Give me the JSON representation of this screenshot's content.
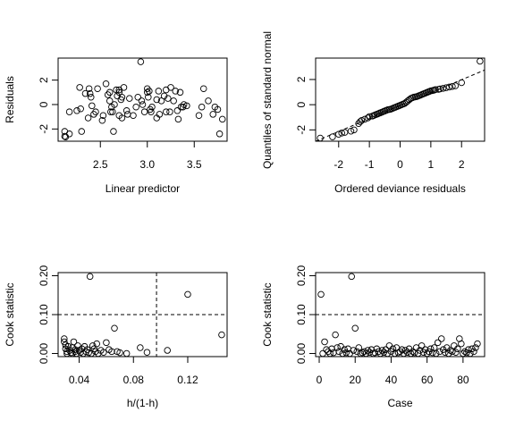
{
  "chart_data": [
    {
      "type": "scatter",
      "xlabel": "Linear predictor",
      "ylabel": "Residuals",
      "xlim": [
        2.05,
        3.85
      ],
      "ylim": [
        -3.0,
        3.8
      ],
      "xticks": [
        2.5,
        3.0,
        3.5
      ],
      "xtick_labels": [
        "2.5",
        "3.0",
        "3.5"
      ],
      "yticks": [
        -2,
        0,
        2
      ],
      "ytick_labels": [
        "-2",
        "0",
        "2"
      ],
      "points": [
        [
          2.12,
          -2.2
        ],
        [
          2.12,
          -2.6
        ],
        [
          2.13,
          -2.65
        ],
        [
          2.17,
          -2.4
        ],
        [
          2.17,
          -0.6
        ],
        [
          2.25,
          -0.5
        ],
        [
          2.28,
          1.4
        ],
        [
          2.29,
          -0.35
        ],
        [
          2.3,
          -2.2
        ],
        [
          2.34,
          0.9
        ],
        [
          2.37,
          -1.1
        ],
        [
          2.38,
          1.3
        ],
        [
          2.39,
          0.9
        ],
        [
          2.4,
          0.6
        ],
        [
          2.41,
          -0.1
        ],
        [
          2.43,
          -0.8
        ],
        [
          2.47,
          1.3
        ],
        [
          2.52,
          -1.3
        ],
        [
          2.53,
          -0.9
        ],
        [
          2.56,
          1.7
        ],
        [
          2.58,
          0.8
        ],
        [
          2.6,
          1.0
        ],
        [
          2.6,
          0.3
        ],
        [
          2.61,
          -0.6
        ],
        [
          2.62,
          -0.2
        ],
        [
          2.63,
          -0.6
        ],
        [
          2.64,
          -2.2
        ],
        [
          2.65,
          0.0
        ],
        [
          2.67,
          1.2
        ],
        [
          2.68,
          0.7
        ],
        [
          2.7,
          -0.9
        ],
        [
          2.7,
          1.2
        ],
        [
          2.7,
          1.0
        ],
        [
          2.72,
          0.4
        ],
        [
          2.73,
          0.6
        ],
        [
          2.73,
          -1.1
        ],
        [
          2.75,
          1.4
        ],
        [
          2.78,
          -0.5
        ],
        [
          2.79,
          -0.8
        ],
        [
          2.81,
          0.5
        ],
        [
          2.85,
          -0.9
        ],
        [
          2.88,
          -0.2
        ],
        [
          2.9,
          0.6
        ],
        [
          2.93,
          3.5
        ],
        [
          2.94,
          0.3
        ],
        [
          2.95,
          0.0
        ],
        [
          2.97,
          -0.6
        ],
        [
          3.0,
          1.0
        ],
        [
          3.0,
          1.3
        ],
        [
          3.01,
          0.6
        ],
        [
          3.02,
          1.1
        ],
        [
          3.03,
          -0.4
        ],
        [
          3.04,
          -0.6
        ],
        [
          3.05,
          -0.2
        ],
        [
          3.1,
          -1.1
        ],
        [
          3.12,
          1.1
        ],
        [
          3.13,
          -0.8
        ],
        [
          3.15,
          0.3
        ],
        [
          3.18,
          0.7
        ],
        [
          3.2,
          -0.6
        ],
        [
          3.2,
          1.2
        ],
        [
          3.22,
          0.5
        ],
        [
          3.24,
          -0.6
        ],
        [
          3.25,
          1.4
        ],
        [
          3.28,
          0.3
        ],
        [
          3.3,
          1.1
        ],
        [
          3.32,
          -0.5
        ],
        [
          3.33,
          -1.2
        ],
        [
          3.35,
          1.0
        ],
        [
          3.36,
          -0.2
        ],
        [
          3.38,
          -0.2
        ],
        [
          3.39,
          0.0
        ],
        [
          3.42,
          -0.1
        ],
        [
          3.55,
          -0.9
        ],
        [
          3.58,
          -0.2
        ],
        [
          3.6,
          1.3
        ],
        [
          3.65,
          0.3
        ],
        [
          3.7,
          -0.8
        ],
        [
          3.72,
          -0.2
        ],
        [
          3.77,
          -2.4
        ],
        [
          3.8,
          -1.2
        ],
        [
          3.75,
          -0.4
        ],
        [
          3.1,
          0.4
        ],
        [
          2.45,
          -0.6
        ]
      ]
    },
    {
      "type": "scatter",
      "xlabel": "Ordered deviance residuals",
      "ylabel": "Quantiles of standard normal",
      "xlim": [
        -2.75,
        2.75
      ],
      "ylim": [
        -2.9,
        3.7
      ],
      "xticks": [
        -2,
        -1,
        0,
        1,
        2
      ],
      "xtick_labels": [
        "-2",
        "-1",
        "0",
        "1",
        "2"
      ],
      "yticks": [
        -2,
        0,
        2
      ],
      "ytick_labels": [
        "-2",
        "0",
        "2"
      ],
      "reference_line": [
        [
          -2.75,
          -2.9
        ],
        [
          2.75,
          2.75
        ]
      ],
      "points": [
        [
          -2.6,
          -2.65
        ],
        [
          -2.2,
          -2.55
        ],
        [
          -2.0,
          -2.35
        ],
        [
          -1.9,
          -2.25
        ],
        [
          -1.8,
          -2.2
        ],
        [
          -1.6,
          -2.1
        ],
        [
          -1.5,
          -2.0
        ],
        [
          -1.35,
          -1.5
        ],
        [
          -1.3,
          -1.35
        ],
        [
          -1.25,
          -1.25
        ],
        [
          -1.15,
          -1.15
        ],
        [
          -1.05,
          -1.05
        ],
        [
          -1.0,
          -0.95
        ],
        [
          -0.9,
          -0.9
        ],
        [
          -0.85,
          -0.85
        ],
        [
          -0.8,
          -0.8
        ],
        [
          -0.75,
          -0.75
        ],
        [
          -0.7,
          -0.7
        ],
        [
          -0.65,
          -0.65
        ],
        [
          -0.6,
          -0.6
        ],
        [
          -0.55,
          -0.55
        ],
        [
          -0.5,
          -0.5
        ],
        [
          -0.45,
          -0.45
        ],
        [
          -0.4,
          -0.4
        ],
        [
          -0.35,
          -0.38
        ],
        [
          -0.3,
          -0.35
        ],
        [
          -0.25,
          -0.3
        ],
        [
          -0.2,
          -0.25
        ],
        [
          -0.15,
          -0.2
        ],
        [
          -0.1,
          -0.15
        ],
        [
          -0.05,
          -0.1
        ],
        [
          0.0,
          -0.05
        ],
        [
          0.05,
          0.0
        ],
        [
          0.1,
          0.05
        ],
        [
          0.15,
          0.1
        ],
        [
          0.2,
          0.2
        ],
        [
          0.25,
          0.3
        ],
        [
          0.3,
          0.4
        ],
        [
          0.35,
          0.5
        ],
        [
          0.4,
          0.55
        ],
        [
          0.45,
          0.6
        ],
        [
          0.5,
          0.62
        ],
        [
          0.55,
          0.65
        ],
        [
          0.6,
          0.7
        ],
        [
          0.65,
          0.75
        ],
        [
          0.7,
          0.8
        ],
        [
          0.75,
          0.85
        ],
        [
          0.8,
          0.9
        ],
        [
          0.85,
          0.95
        ],
        [
          0.9,
          1.0
        ],
        [
          0.95,
          1.05
        ],
        [
          1.0,
          1.1
        ],
        [
          1.05,
          1.12
        ],
        [
          1.1,
          1.15
        ],
        [
          1.15,
          1.2
        ],
        [
          1.25,
          1.22
        ],
        [
          1.3,
          1.25
        ],
        [
          1.4,
          1.3
        ],
        [
          1.5,
          1.35
        ],
        [
          1.6,
          1.4
        ],
        [
          1.7,
          1.45
        ],
        [
          1.8,
          1.5
        ],
        [
          2.0,
          1.75
        ],
        [
          2.6,
          3.45
        ]
      ]
    },
    {
      "type": "scatter",
      "xlabel": "h/(1-h)",
      "ylabel": "Cook statistic",
      "xlim": [
        0.0245,
        0.149
      ],
      "ylim": [
        -0.008,
        0.208
      ],
      "xticks": [
        0.04,
        0.08,
        0.12
      ],
      "xtick_labels": [
        "0.04",
        "0.08",
        "0.12"
      ],
      "yticks": [
        0.0,
        0.1,
        0.2
      ],
      "ytick_labels": [
        "0.00",
        "0.10",
        "0.20"
      ],
      "hline": 0.1,
      "vline": 0.097,
      "points": [
        [
          0.029,
          0.038
        ],
        [
          0.029,
          0.03
        ],
        [
          0.03,
          0.022
        ],
        [
          0.03,
          0.012
        ],
        [
          0.031,
          0.005
        ],
        [
          0.031,
          0.0
        ],
        [
          0.032,
          0.018
        ],
        [
          0.033,
          0.008
        ],
        [
          0.034,
          0.002
        ],
        [
          0.035,
          0.015
        ],
        [
          0.035,
          0.0
        ],
        [
          0.036,
          0.03
        ],
        [
          0.037,
          0.01
        ],
        [
          0.037,
          0.005
        ],
        [
          0.038,
          0.0
        ],
        [
          0.039,
          0.02
        ],
        [
          0.04,
          0.008
        ],
        [
          0.041,
          0.003
        ],
        [
          0.042,
          0.012
        ],
        [
          0.043,
          0.0
        ],
        [
          0.044,
          0.018
        ],
        [
          0.045,
          0.005
        ],
        [
          0.046,
          0.01
        ],
        [
          0.047,
          0.002
        ],
        [
          0.048,
          0.198
        ],
        [
          0.049,
          0.0
        ],
        [
          0.05,
          0.02
        ],
        [
          0.051,
          0.012
        ],
        [
          0.052,
          0.005
        ],
        [
          0.053,
          0.025
        ],
        [
          0.054,
          0.0
        ],
        [
          0.056,
          0.008
        ],
        [
          0.058,
          0.003
        ],
        [
          0.06,
          0.028
        ],
        [
          0.062,
          0.01
        ],
        [
          0.064,
          0.005
        ],
        [
          0.066,
          0.065
        ],
        [
          0.068,
          0.005
        ],
        [
          0.07,
          0.002
        ],
        [
          0.075,
          0.0
        ],
        [
          0.085,
          0.015
        ],
        [
          0.09,
          0.003
        ],
        [
          0.105,
          0.008
        ],
        [
          0.12,
          0.152
        ],
        [
          0.145,
          0.048
        ]
      ]
    },
    {
      "type": "scatter",
      "xlabel": "Case",
      "ylabel": "Cook statistic",
      "xlim": [
        -2,
        92
      ],
      "ylim": [
        -0.008,
        0.208
      ],
      "xticks": [
        0,
        20,
        40,
        60,
        80
      ],
      "xtick_labels": [
        "0",
        "20",
        "40",
        "60",
        "80"
      ],
      "yticks": [
        0.0,
        0.1,
        0.2
      ],
      "ytick_labels": [
        "0.00",
        "0.10",
        "0.20"
      ],
      "hline": 0.1,
      "points": [
        [
          1,
          0.152
        ],
        [
          2,
          0.0
        ],
        [
          3,
          0.03
        ],
        [
          4,
          0.01
        ],
        [
          5,
          0.005
        ],
        [
          6,
          0.0
        ],
        [
          7,
          0.012
        ],
        [
          8,
          0.002
        ],
        [
          9,
          0.048
        ],
        [
          10,
          0.015
        ],
        [
          11,
          0.005
        ],
        [
          12,
          0.018
        ],
        [
          13,
          0.0
        ],
        [
          14,
          0.01
        ],
        [
          15,
          0.002
        ],
        [
          16,
          0.012
        ],
        [
          17,
          0.0
        ],
        [
          18,
          0.198
        ],
        [
          19,
          0.008
        ],
        [
          20,
          0.065
        ],
        [
          21,
          0.005
        ],
        [
          22,
          0.015
        ],
        [
          23,
          0.0
        ],
        [
          24,
          0.002
        ],
        [
          25,
          0.005
        ],
        [
          26,
          0.0
        ],
        [
          27,
          0.008
        ],
        [
          28,
          0.003
        ],
        [
          29,
          0.01
        ],
        [
          30,
          0.0
        ],
        [
          31,
          0.002
        ],
        [
          32,
          0.012
        ],
        [
          33,
          0.005
        ],
        [
          34,
          0.0
        ],
        [
          35,
          0.008
        ],
        [
          36,
          0.003
        ],
        [
          37,
          0.01
        ],
        [
          38,
          0.0
        ],
        [
          39,
          0.02
        ],
        [
          40,
          0.005
        ],
        [
          41,
          0.012
        ],
        [
          42,
          0.0
        ],
        [
          43,
          0.015
        ],
        [
          44,
          0.002
        ],
        [
          45,
          0.005
        ],
        [
          46,
          0.01
        ],
        [
          47,
          0.0
        ],
        [
          48,
          0.008
        ],
        [
          49,
          0.003
        ],
        [
          50,
          0.012
        ],
        [
          51,
          0.0
        ],
        [
          52,
          0.005
        ],
        [
          53,
          0.002
        ],
        [
          54,
          0.015
        ],
        [
          55,
          0.0
        ],
        [
          56,
          0.008
        ],
        [
          57,
          0.02
        ],
        [
          58,
          0.003
        ],
        [
          59,
          0.01
        ],
        [
          60,
          0.0
        ],
        [
          61,
          0.005
        ],
        [
          62,
          0.012
        ],
        [
          63,
          0.002
        ],
        [
          64,
          0.015
        ],
        [
          65,
          0.0
        ],
        [
          66,
          0.028
        ],
        [
          67,
          0.005
        ],
        [
          68,
          0.038
        ],
        [
          69,
          0.01
        ],
        [
          70,
          0.003
        ],
        [
          71,
          0.015
        ],
        [
          72,
          0.0
        ],
        [
          73,
          0.008
        ],
        [
          74,
          0.005
        ],
        [
          75,
          0.02
        ],
        [
          76,
          0.003
        ],
        [
          77,
          0.012
        ],
        [
          78,
          0.038
        ],
        [
          79,
          0.025
        ],
        [
          80,
          0.0
        ],
        [
          81,
          0.005
        ],
        [
          82,
          0.002
        ],
        [
          83,
          0.01
        ],
        [
          84,
          0.0
        ],
        [
          85,
          0.012
        ],
        [
          86,
          0.005
        ],
        [
          87,
          0.015
        ],
        [
          88,
          0.025
        ]
      ]
    }
  ]
}
